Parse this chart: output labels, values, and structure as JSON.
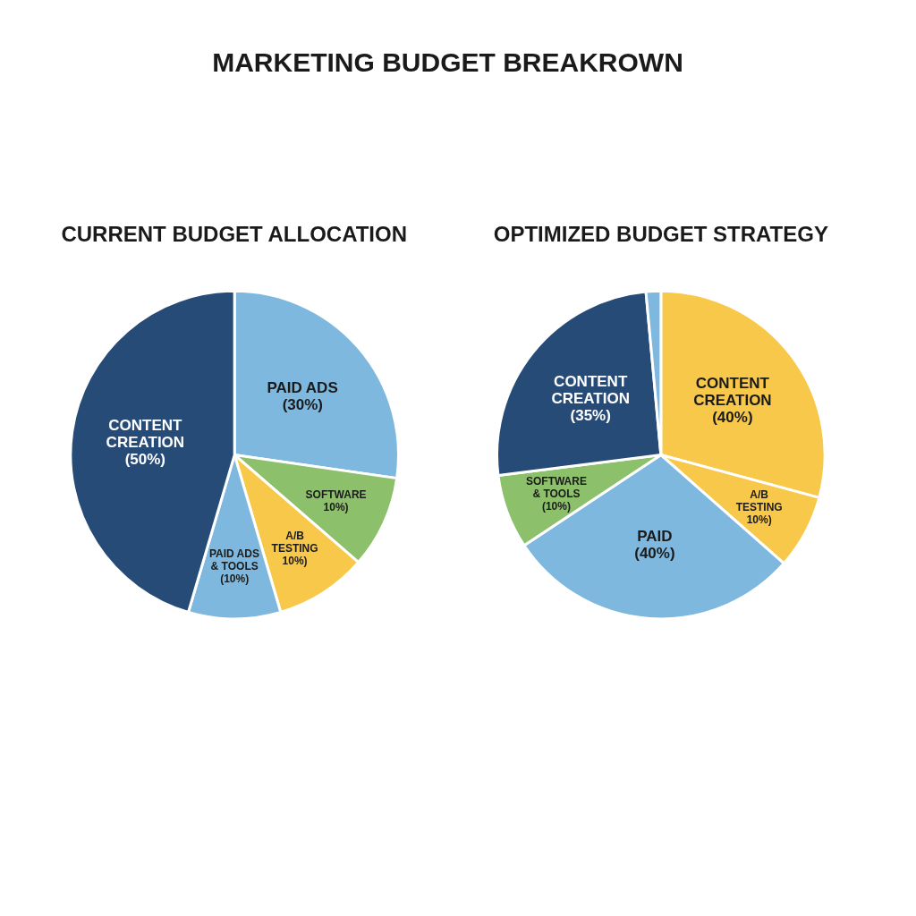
{
  "chart_data": [
    {
      "type": "pie",
      "title": "MARKETING BUDGET BREAKROWN",
      "subtitle": "CURRENT BUDGET ALLOCATION",
      "categories": [
        "PAID ADS",
        "SOFTWARE",
        "A/B TESTING",
        "PAID ADS & TOOLS",
        "CONTENT CREATION"
      ],
      "values": [
        30,
        10,
        10,
        10,
        50
      ],
      "colors": [
        "#7fb8de",
        "#8cc06b",
        "#f8c84a",
        "#7fb8de",
        "#274b77"
      ],
      "value_labels": [
        "(30%)",
        "10%)",
        "10%)",
        "(10%)",
        "(50%)"
      ]
    },
    {
      "type": "pie",
      "subtitle": "OPTIMIZED BUDGET STRATEGY",
      "categories": [
        "CONTENT CREATION",
        "A/B TESTING",
        "PAID",
        "SOFTWARE & TOOLS",
        "CONTENT CREATION",
        null
      ],
      "values": [
        40,
        10,
        40,
        10,
        35,
        2
      ],
      "colors": [
        "#f8c84a",
        "#f8c84a",
        "#7fb8de",
        "#8cc06b",
        "#274b77",
        "#7fb8de"
      ],
      "value_labels": [
        "(40%)",
        "10%)",
        "(40%)",
        "(10%)",
        "(35%)",
        null
      ]
    }
  ]
}
